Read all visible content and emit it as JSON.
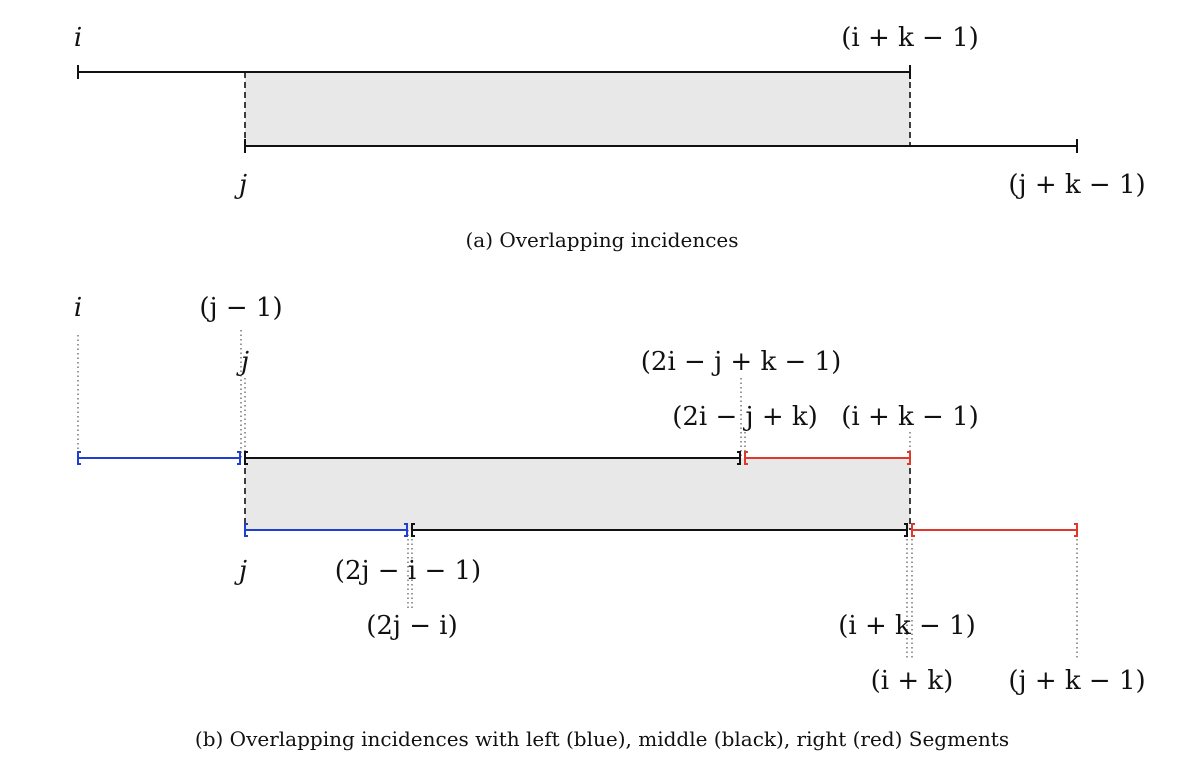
{
  "colors": {
    "left": "#1f3fd1",
    "middle": "#111111",
    "right": "#e0392b",
    "shade": "#e8e8e8"
  },
  "panel_a": {
    "labels": {
      "i": "i",
      "ikm1": "(i + k − 1)",
      "j": "j",
      "jkm1": "(j + k − 1)"
    },
    "caption": "(a) Overlapping incidences"
  },
  "panel_b": {
    "labels": {
      "i": "i",
      "jm1": "(j − 1)",
      "j_top": "j",
      "two_i_jkm1": "(2i − j + k − 1)",
      "two_i_jk": "(2i − j + k)",
      "ikm1_top": "(i + k − 1)",
      "j_bot": "j",
      "two_j_im1": "(2j − i − 1)",
      "two_j_i": "(2j − i)",
      "ikm1_bot": "(i + k − 1)",
      "ik": "(i + k)",
      "jkm1": "(j + k − 1)"
    },
    "caption": "(b) Overlapping incidences with left (blue), middle (black), right (red) Segments"
  }
}
